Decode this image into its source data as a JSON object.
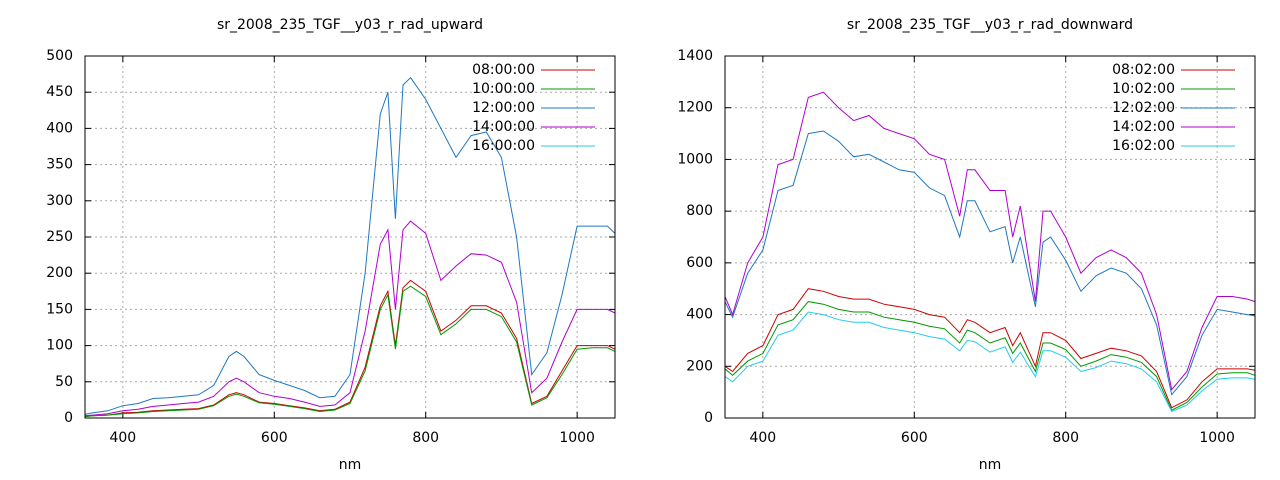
{
  "chart_data": [
    {
      "type": "line",
      "title": "sr_2008_235_TGF__y03_r_rad_upward",
      "xlabel": "nm",
      "xlim": [
        350,
        1050
      ],
      "xticks": [
        400,
        600,
        800,
        1000
      ],
      "ylim": [
        0,
        500
      ],
      "yticks": [
        0,
        50,
        100,
        150,
        200,
        250,
        300,
        350,
        400,
        450,
        500
      ],
      "grid": true,
      "legend": "top-right",
      "x": [
        350,
        360,
        380,
        400,
        420,
        440,
        460,
        480,
        500,
        520,
        540,
        550,
        560,
        580,
        600,
        620,
        640,
        660,
        680,
        700,
        720,
        740,
        750,
        760,
        770,
        780,
        800,
        820,
        840,
        860,
        880,
        900,
        920,
        940,
        960,
        980,
        1000,
        1020,
        1040,
        1050
      ],
      "series": [
        {
          "name": "08:00:00",
          "color": "#cc0000",
          "values": [
            2,
            3,
            4,
            7,
            8,
            10,
            11,
            12,
            13,
            18,
            32,
            35,
            32,
            22,
            20,
            17,
            14,
            10,
            12,
            22,
            70,
            155,
            175,
            100,
            180,
            190,
            175,
            120,
            135,
            155,
            155,
            145,
            110,
            20,
            30,
            65,
            100,
            100,
            100,
            95
          ]
        },
        {
          "name": "10:00:00",
          "color": "#009900",
          "values": [
            2,
            3,
            4,
            6,
            7,
            9,
            10,
            11,
            12,
            17,
            30,
            33,
            30,
            21,
            19,
            16,
            13,
            9,
            11,
            20,
            65,
            150,
            170,
            95,
            175,
            182,
            168,
            115,
            130,
            150,
            150,
            140,
            105,
            18,
            28,
            60,
            95,
            97,
            97,
            92
          ]
        },
        {
          "name": "12:00:00",
          "color": "#1f78c0",
          "values": [
            5,
            7,
            10,
            17,
            20,
            27,
            28,
            30,
            32,
            45,
            85,
            92,
            85,
            60,
            52,
            45,
            38,
            28,
            30,
            60,
            200,
            420,
            450,
            275,
            460,
            470,
            440,
            400,
            360,
            390,
            395,
            360,
            250,
            60,
            90,
            170,
            265,
            265,
            265,
            255
          ]
        },
        {
          "name": "14:00:00",
          "color": "#b000d0",
          "values": [
            3,
            4,
            6,
            10,
            12,
            16,
            18,
            20,
            22,
            30,
            50,
            55,
            50,
            35,
            30,
            27,
            22,
            16,
            18,
            35,
            120,
            240,
            260,
            150,
            260,
            272,
            255,
            190,
            210,
            227,
            225,
            215,
            160,
            35,
            55,
            105,
            150,
            150,
            150,
            145
          ]
        },
        {
          "name": "16:00:00",
          "color": "#22ccee",
          "values": [
            null,
            null,
            null,
            null,
            null,
            null,
            null,
            null,
            null,
            null,
            null,
            null,
            null,
            null,
            null,
            null,
            null,
            null,
            null,
            null,
            null,
            null,
            null,
            null,
            null,
            null,
            null,
            null,
            null,
            null,
            null,
            null,
            null,
            null,
            null,
            null,
            null,
            null,
            null,
            null
          ]
        }
      ]
    },
    {
      "type": "line",
      "title": "sr_2008_235_TGF__y03_r_rad_downward",
      "xlabel": "nm",
      "xlim": [
        350,
        1050
      ],
      "xticks": [
        400,
        600,
        800,
        1000
      ],
      "ylim": [
        0,
        1400
      ],
      "yticks": [
        0,
        200,
        400,
        600,
        800,
        1000,
        1200,
        1400
      ],
      "grid": true,
      "legend": "top-right",
      "x": [
        350,
        360,
        380,
        400,
        420,
        440,
        460,
        480,
        500,
        520,
        540,
        560,
        580,
        600,
        620,
        640,
        660,
        670,
        680,
        700,
        720,
        730,
        740,
        760,
        770,
        780,
        800,
        820,
        840,
        860,
        880,
        900,
        920,
        940,
        960,
        980,
        1000,
        1020,
        1040,
        1050
      ],
      "series": [
        {
          "name": "08:02:00",
          "color": "#cc0000",
          "values": [
            200,
            180,
            250,
            280,
            400,
            420,
            500,
            490,
            470,
            460,
            460,
            440,
            430,
            420,
            400,
            390,
            330,
            380,
            370,
            330,
            350,
            280,
            330,
            200,
            330,
            330,
            300,
            230,
            250,
            270,
            260,
            240,
            180,
            40,
            70,
            140,
            190,
            190,
            190,
            185
          ]
        },
        {
          "name": "10:02:00",
          "color": "#009900",
          "values": [
            190,
            165,
            220,
            250,
            360,
            380,
            450,
            440,
            420,
            410,
            410,
            390,
            380,
            370,
            355,
            345,
            290,
            340,
            330,
            290,
            310,
            250,
            290,
            180,
            290,
            290,
            265,
            200,
            220,
            245,
            235,
            215,
            160,
            30,
            60,
            120,
            170,
            175,
            175,
            165
          ]
        },
        {
          "name": "12:02:00",
          "color": "#1f78c0",
          "values": [
            450,
            390,
            560,
            650,
            880,
            900,
            1100,
            1110,
            1070,
            1010,
            1020,
            990,
            960,
            950,
            890,
            860,
            700,
            840,
            840,
            720,
            740,
            600,
            700,
            430,
            680,
            700,
            610,
            490,
            550,
            580,
            560,
            500,
            360,
            90,
            160,
            320,
            420,
            410,
            400,
            395
          ]
        },
        {
          "name": "14:02:00",
          "color": "#b000d0",
          "values": [
            470,
            400,
            600,
            700,
            980,
            1000,
            1240,
            1260,
            1200,
            1150,
            1170,
            1120,
            1100,
            1080,
            1020,
            1000,
            780,
            960,
            960,
            880,
            880,
            700,
            820,
            450,
            800,
            800,
            700,
            560,
            620,
            650,
            620,
            560,
            400,
            110,
            180,
            350,
            470,
            470,
            460,
            450
          ]
        },
        {
          "name": "16:02:00",
          "color": "#22ccee",
          "values": [
            160,
            140,
            200,
            220,
            320,
            340,
            410,
            400,
            380,
            370,
            370,
            350,
            340,
            330,
            315,
            305,
            260,
            300,
            295,
            255,
            275,
            215,
            255,
            160,
            260,
            260,
            235,
            180,
            195,
            220,
            210,
            190,
            140,
            25,
            50,
            105,
            150,
            155,
            155,
            150
          ]
        }
      ]
    }
  ]
}
